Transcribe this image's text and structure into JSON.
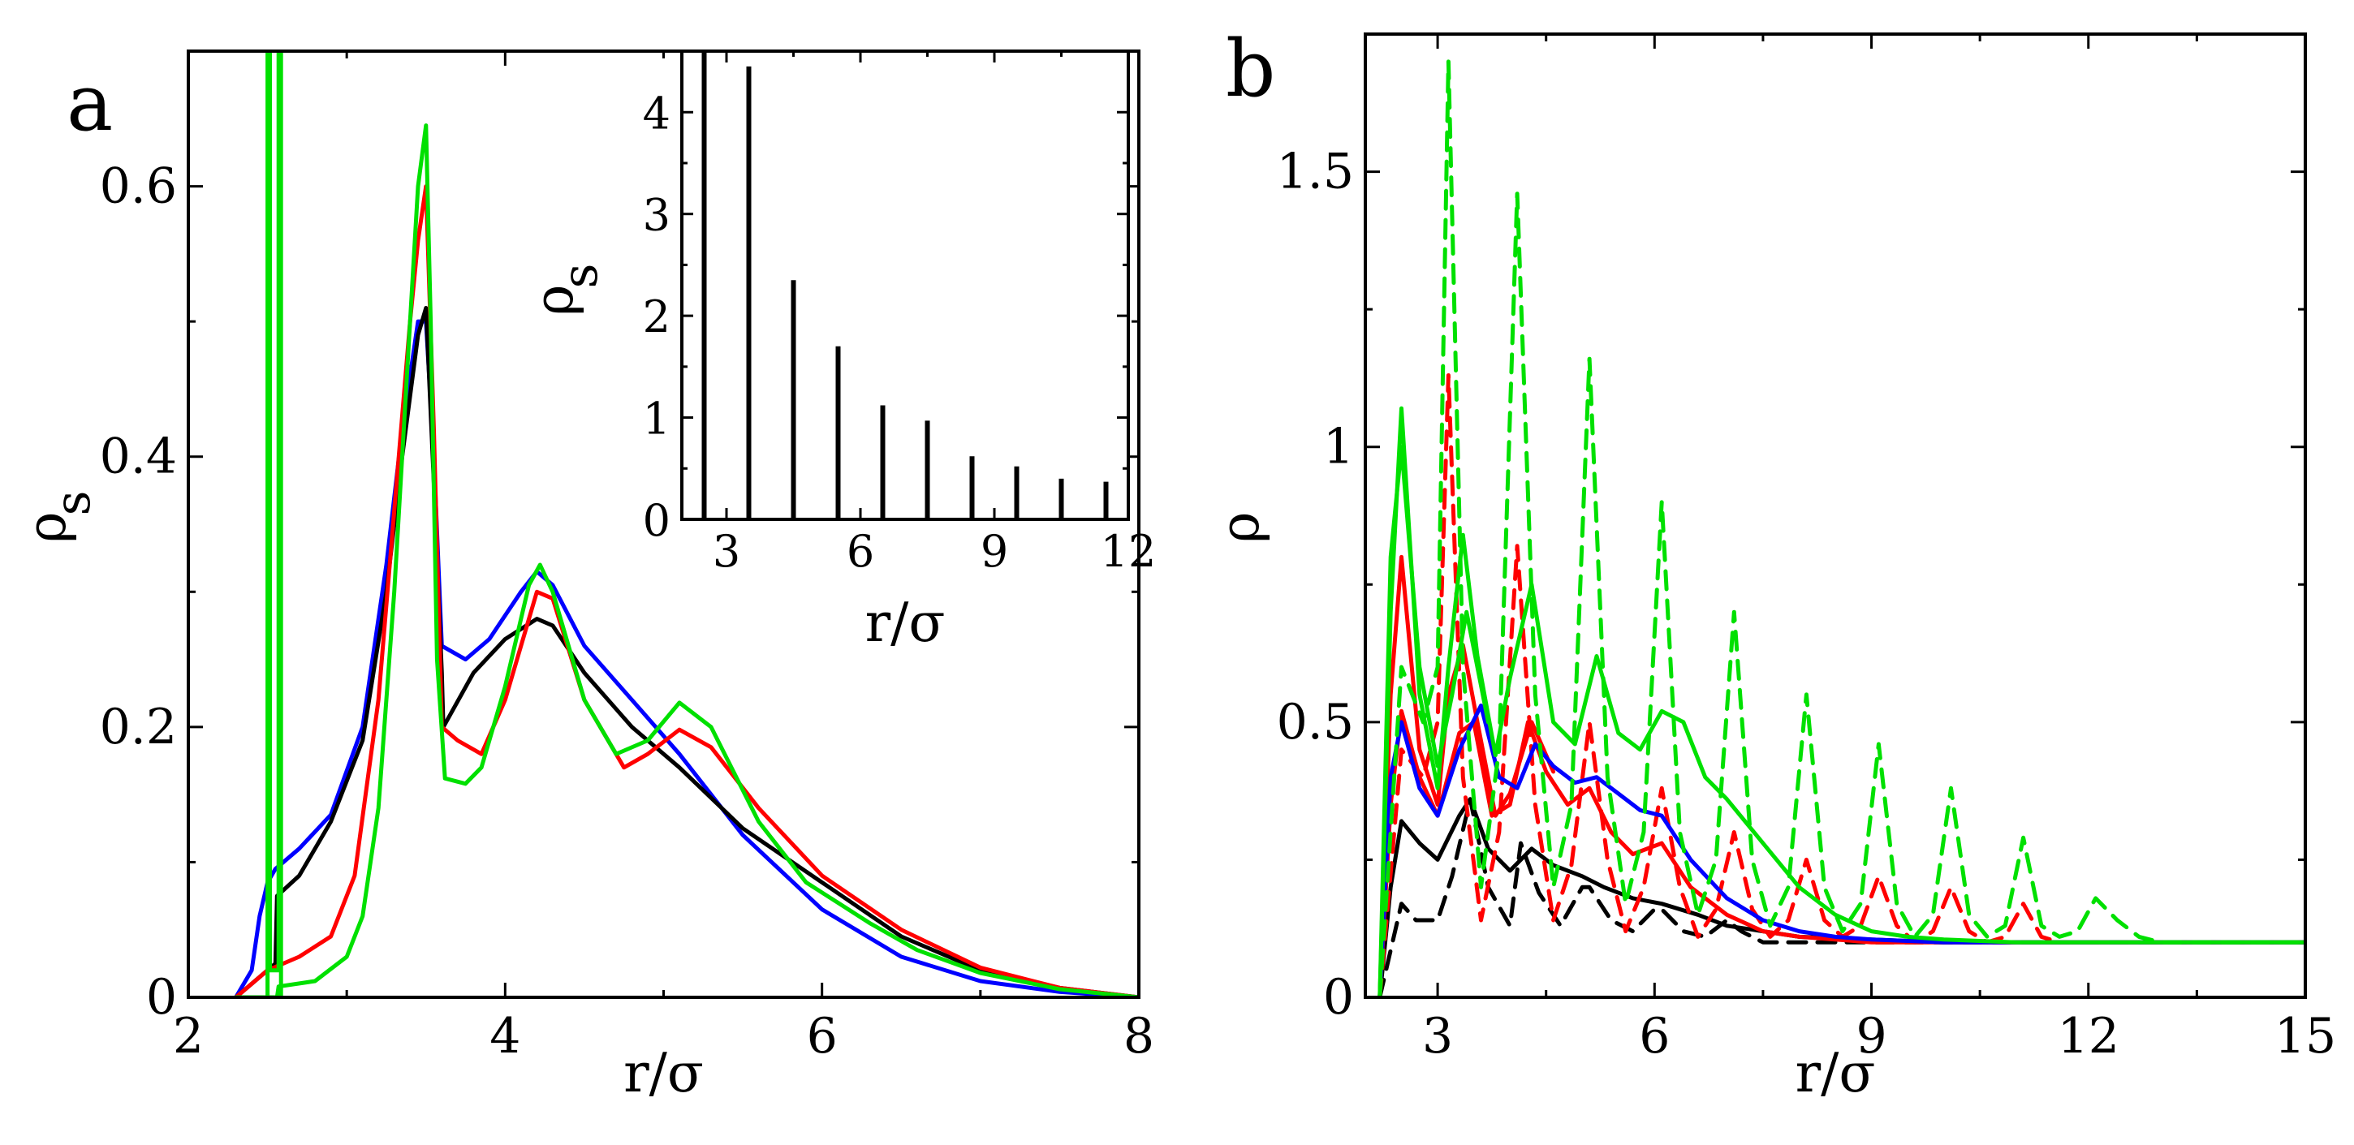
{
  "figure": {
    "panels": [
      {
        "letter": "a"
      },
      {
        "letter": "b"
      }
    ]
  },
  "chart_data": [
    {
      "type": "line",
      "panel": "a",
      "xlabel": "r/σ",
      "ylabel": "ρ",
      "ylabel_sub": "s",
      "xlim": [
        2,
        8
      ],
      "ylim": [
        0,
        0.7
      ],
      "xticks": [
        2,
        4,
        6,
        8
      ],
      "xtick_labels": [
        "2",
        "4",
        "6",
        "8"
      ],
      "yticks": [
        0,
        0.2,
        0.4,
        0.6
      ],
      "ytick_labels": [
        "0",
        "0.2",
        "0.4",
        "0.6"
      ],
      "series": [
        {
          "name": "blue",
          "color": "#0000ff",
          "x": [
            2.3,
            2.4,
            2.45,
            2.5,
            2.55,
            2.7,
            2.9,
            3.1,
            3.25,
            3.35,
            3.45,
            3.5,
            3.55,
            3.6,
            3.75,
            3.9,
            4.1,
            4.2,
            4.3,
            4.5,
            4.8,
            5.1,
            5.5,
            6.0,
            6.5,
            7.0,
            7.5,
            8.0
          ],
          "y": [
            0.0,
            0.02,
            0.06,
            0.085,
            0.095,
            0.11,
            0.135,
            0.2,
            0.32,
            0.42,
            0.5,
            0.5,
            0.4,
            0.26,
            0.25,
            0.265,
            0.3,
            0.315,
            0.305,
            0.26,
            0.22,
            0.18,
            0.12,
            0.065,
            0.03,
            0.012,
            0.004,
            0.0
          ]
        },
        {
          "name": "black",
          "color": "#000000",
          "x": [
            2.3,
            2.4,
            2.5,
            2.55,
            2.56,
            2.7,
            2.9,
            3.1,
            3.25,
            3.35,
            3.45,
            3.5,
            3.55,
            3.6,
            3.61,
            3.8,
            4.0,
            4.2,
            4.3,
            4.5,
            4.8,
            5.1,
            5.5,
            6.0,
            6.5,
            7.0,
            7.5,
            8.0
          ],
          "y": [
            0.0,
            0.01,
            0.02,
            0.025,
            0.075,
            0.09,
            0.13,
            0.19,
            0.3,
            0.4,
            0.49,
            0.51,
            0.38,
            0.24,
            0.2,
            0.24,
            0.265,
            0.28,
            0.275,
            0.24,
            0.2,
            0.17,
            0.125,
            0.085,
            0.045,
            0.02,
            0.007,
            0.0
          ]
        },
        {
          "name": "red",
          "color": "#ff0000",
          "x": [
            2.3,
            2.4,
            2.5,
            2.7,
            2.9,
            3.05,
            3.2,
            3.3,
            3.4,
            3.45,
            3.5,
            3.55,
            3.6,
            3.7,
            3.85,
            4.0,
            4.2,
            4.3,
            4.5,
            4.75,
            4.9,
            5.1,
            5.3,
            5.6,
            6.0,
            6.5,
            7.0,
            7.5,
            8.0
          ],
          "y": [
            0.0,
            0.01,
            0.02,
            0.03,
            0.045,
            0.09,
            0.22,
            0.36,
            0.5,
            0.56,
            0.6,
            0.42,
            0.2,
            0.19,
            0.18,
            0.22,
            0.3,
            0.295,
            0.22,
            0.17,
            0.18,
            0.198,
            0.185,
            0.14,
            0.09,
            0.05,
            0.022,
            0.007,
            0.0
          ]
        },
        {
          "name": "green",
          "color": "#00e000",
          "x": [
            2.3,
            2.5,
            2.56,
            2.57,
            2.8,
            3.0,
            3.1,
            3.2,
            3.3,
            3.4,
            3.45,
            3.5,
            3.53,
            3.57,
            3.62,
            3.75,
            3.85,
            4.0,
            4.15,
            4.22,
            4.3,
            4.5,
            4.7,
            4.9,
            5.1,
            5.3,
            5.6,
            5.9,
            6.1,
            6.3,
            6.6,
            7.0,
            7.5,
            8.0
          ],
          "y": [
            0.0,
            0.0,
            0.0,
            0.008,
            0.012,
            0.03,
            0.06,
            0.14,
            0.3,
            0.5,
            0.6,
            0.645,
            0.5,
            0.25,
            0.162,
            0.158,
            0.17,
            0.23,
            0.305,
            0.32,
            0.3,
            0.22,
            0.18,
            0.19,
            0.218,
            0.2,
            0.13,
            0.085,
            0.07,
            0.055,
            0.035,
            0.018,
            0.006,
            0.0
          ]
        },
        {
          "name": "green-spike",
          "color": "#00e000",
          "x": [
            2.5,
            2.5,
            2.515,
            2.515,
            2.57,
            2.57,
            2.585,
            2.585
          ],
          "y": [
            0.0,
            0.7,
            0.7,
            0.02,
            0.02,
            0.7,
            0.7,
            0.0
          ]
        }
      ]
    },
    {
      "type": "bar",
      "panel": "a-inset",
      "xlabel": "r/σ",
      "ylabel": "ρ",
      "ylabel_sub": "s",
      "xlim": [
        2,
        12
      ],
      "ylim": [
        0,
        4.6
      ],
      "xticks": [
        3,
        6,
        9,
        12
      ],
      "xtick_labels": [
        "3",
        "6",
        "9",
        "12"
      ],
      "yticks": [
        0,
        1,
        2,
        3,
        4
      ],
      "ytick_labels": [
        "0",
        "1",
        "2",
        "3",
        "4"
      ],
      "x": [
        2.5,
        3.5,
        4.5,
        5.5,
        6.5,
        7.5,
        8.5,
        9.5,
        10.5,
        11.5
      ],
      "values": [
        4.6,
        4.45,
        2.35,
        1.7,
        1.12,
        0.97,
        0.62,
        0.52,
        0.4,
        0.37
      ]
    },
    {
      "type": "line",
      "panel": "b",
      "xlabel": "r/σ",
      "ylabel": "ρ",
      "xlim": [
        2,
        15
      ],
      "ylim": [
        0,
        1.75
      ],
      "xticks": [
        3,
        6,
        9,
        12,
        15
      ],
      "xtick_labels": [
        "3",
        "6",
        "9",
        "12",
        "15"
      ],
      "yticks": [
        0,
        0.5,
        1,
        1.5
      ],
      "ytick_labels": [
        "0",
        "0.5",
        "1",
        "1.5"
      ],
      "series": [
        {
          "name": "black-solid",
          "color": "#000000",
          "dashed": false,
          "x": [
            2.2,
            2.35,
            2.5,
            2.75,
            3.0,
            3.3,
            3.45,
            3.7,
            4.0,
            4.3,
            4.6,
            5.0,
            5.3,
            5.7,
            6.1,
            6.6,
            7.0,
            7.5,
            8.0,
            9.0,
            10.0,
            11.0,
            12.0,
            13.0,
            14.0,
            15.0
          ],
          "y": [
            0.0,
            0.2,
            0.32,
            0.28,
            0.25,
            0.33,
            0.36,
            0.27,
            0.23,
            0.27,
            0.24,
            0.22,
            0.2,
            0.18,
            0.17,
            0.15,
            0.13,
            0.12,
            0.11,
            0.105,
            0.1,
            0.1,
            0.1,
            0.1,
            0.1,
            0.1
          ]
        },
        {
          "name": "black-dashed",
          "color": "#000000",
          "dashed": true,
          "x": [
            2.2,
            2.5,
            2.7,
            3.0,
            3.2,
            3.45,
            3.7,
            4.0,
            4.15,
            4.4,
            4.7,
            5.0,
            5.1,
            5.4,
            5.7,
            6.0,
            6.1,
            6.4,
            6.7,
            7.0,
            7.2,
            7.5,
            8.0,
            9.0,
            10.0,
            11.0,
            12.0,
            13.0,
            14.0,
            15.0
          ],
          "y": [
            0.0,
            0.17,
            0.14,
            0.14,
            0.22,
            0.36,
            0.2,
            0.13,
            0.28,
            0.19,
            0.13,
            0.2,
            0.2,
            0.14,
            0.12,
            0.16,
            0.16,
            0.12,
            0.11,
            0.14,
            0.12,
            0.1,
            0.1,
            0.1,
            0.1,
            0.1,
            0.1,
            0.1,
            0.1,
            0.1
          ]
        },
        {
          "name": "red-solid",
          "color": "#ff0000",
          "x": [
            2.2,
            2.35,
            2.5,
            2.75,
            3.0,
            3.3,
            3.5,
            3.75,
            4.0,
            4.25,
            4.5,
            4.8,
            5.1,
            5.4,
            5.7,
            6.1,
            6.5,
            7.0,
            7.5,
            8.0,
            9.0,
            10.0,
            11.0,
            12.0,
            13.0,
            14.0,
            15.0
          ],
          "y": [
            0.0,
            0.35,
            0.52,
            0.4,
            0.33,
            0.48,
            0.5,
            0.33,
            0.35,
            0.5,
            0.41,
            0.35,
            0.38,
            0.3,
            0.26,
            0.28,
            0.2,
            0.15,
            0.12,
            0.11,
            0.1,
            0.1,
            0.1,
            0.1,
            0.1,
            0.1,
            0.1
          ]
        },
        {
          "name": "red-solid-2",
          "color": "#ff0000",
          "x": [
            2.2,
            2.35,
            2.5,
            2.75,
            3.0,
            3.15,
            3.35,
            3.55,
            3.8,
            4.0,
            4.3,
            4.6
          ],
          "y": [
            0.0,
            0.55,
            0.8,
            0.45,
            0.35,
            0.55,
            0.64,
            0.5,
            0.33,
            0.37,
            0.5,
            0.41
          ]
        },
        {
          "name": "red-dashed",
          "color": "#ff0000",
          "dashed": true,
          "x": [
            2.2,
            2.5,
            2.8,
            3.0,
            3.15,
            3.35,
            3.6,
            3.85,
            4.1,
            4.35,
            4.6,
            4.85,
            5.1,
            5.35,
            5.6,
            5.85,
            6.1,
            6.35,
            6.6,
            6.85,
            7.1,
            7.35,
            7.6,
            7.85,
            8.1,
            8.35,
            8.6,
            8.85,
            9.1,
            9.35,
            9.6,
            9.85,
            10.1,
            10.35,
            10.6,
            10.85,
            11.1,
            11.35,
            11.6,
            12.0,
            13.0,
            14.0,
            15.0
          ],
          "y": [
            0.0,
            0.45,
            0.4,
            0.5,
            1.13,
            0.4,
            0.14,
            0.3,
            0.82,
            0.35,
            0.14,
            0.24,
            0.5,
            0.25,
            0.12,
            0.2,
            0.38,
            0.2,
            0.11,
            0.16,
            0.3,
            0.16,
            0.11,
            0.14,
            0.25,
            0.14,
            0.11,
            0.13,
            0.22,
            0.13,
            0.1,
            0.12,
            0.2,
            0.12,
            0.1,
            0.11,
            0.17,
            0.11,
            0.1,
            0.1,
            0.1,
            0.1,
            0.1
          ]
        },
        {
          "name": "blue-solid",
          "color": "#0000ff",
          "x": [
            2.2,
            2.35,
            2.5,
            2.75,
            3.0,
            3.3,
            3.6,
            3.85,
            4.1,
            4.35,
            4.6,
            4.9,
            5.2,
            5.5,
            5.8,
            6.1,
            6.5,
            7.0,
            7.5,
            8.0,
            8.5,
            9.0,
            10.0,
            11.0,
            12.0,
            13.0,
            14.0,
            15.0
          ],
          "y": [
            0.0,
            0.4,
            0.5,
            0.38,
            0.33,
            0.45,
            0.53,
            0.4,
            0.38,
            0.46,
            0.42,
            0.39,
            0.4,
            0.37,
            0.34,
            0.33,
            0.25,
            0.18,
            0.14,
            0.12,
            0.11,
            0.105,
            0.1,
            0.1,
            0.1,
            0.1,
            0.1,
            0.1
          ]
        },
        {
          "name": "green-solid",
          "color": "#00e000",
          "x": [
            2.2,
            2.35,
            2.5,
            2.75,
            3.0,
            3.15,
            3.35,
            3.55,
            3.8,
            4.0,
            4.3,
            4.6,
            4.9,
            5.2,
            5.5,
            5.8,
            6.1,
            6.4,
            6.7,
            7.0,
            7.5,
            8.0,
            8.5,
            9.0,
            9.5,
            10.0,
            11.0,
            12.0,
            13.0,
            14.0,
            15.0
          ],
          "y": [
            0.0,
            0.7,
            1.07,
            0.55,
            0.38,
            0.6,
            0.84,
            0.62,
            0.44,
            0.58,
            0.75,
            0.5,
            0.46,
            0.62,
            0.48,
            0.45,
            0.52,
            0.5,
            0.4,
            0.36,
            0.28,
            0.2,
            0.15,
            0.12,
            0.11,
            0.105,
            0.1,
            0.1,
            0.1,
            0.1,
            0.1
          ]
        },
        {
          "name": "green-solid-2",
          "color": "#00e000",
          "x": [
            2.2,
            2.35,
            2.5,
            2.75,
            3.0,
            3.2,
            3.4,
            3.7
          ],
          "y": [
            0.0,
            0.8,
            1.0,
            0.6,
            0.42,
            0.55,
            0.7,
            0.5
          ]
        },
        {
          "name": "green-dashed",
          "color": "#00e000",
          "dashed": true,
          "x": [
            2.2,
            2.5,
            2.8,
            3.0,
            3.15,
            3.35,
            3.6,
            3.85,
            4.1,
            4.35,
            4.6,
            4.85,
            5.1,
            5.35,
            5.6,
            5.85,
            6.1,
            6.35,
            6.6,
            6.85,
            7.1,
            7.35,
            7.6,
            7.85,
            8.1,
            8.35,
            8.6,
            8.85,
            9.1,
            9.35,
            9.6,
            9.85,
            10.1,
            10.35,
            10.6,
            10.85,
            11.1,
            11.35,
            11.6,
            11.85,
            12.1,
            12.4,
            12.7,
            13.0,
            14.0,
            15.0
          ],
          "y": [
            0.0,
            0.6,
            0.5,
            0.6,
            1.7,
            0.6,
            0.2,
            0.45,
            1.46,
            0.55,
            0.2,
            0.35,
            1.16,
            0.4,
            0.17,
            0.3,
            0.9,
            0.3,
            0.15,
            0.25,
            0.7,
            0.25,
            0.13,
            0.2,
            0.55,
            0.2,
            0.12,
            0.17,
            0.46,
            0.17,
            0.11,
            0.15,
            0.38,
            0.15,
            0.11,
            0.13,
            0.29,
            0.13,
            0.11,
            0.12,
            0.18,
            0.14,
            0.11,
            0.1,
            0.1,
            0.1
          ]
        }
      ]
    }
  ]
}
